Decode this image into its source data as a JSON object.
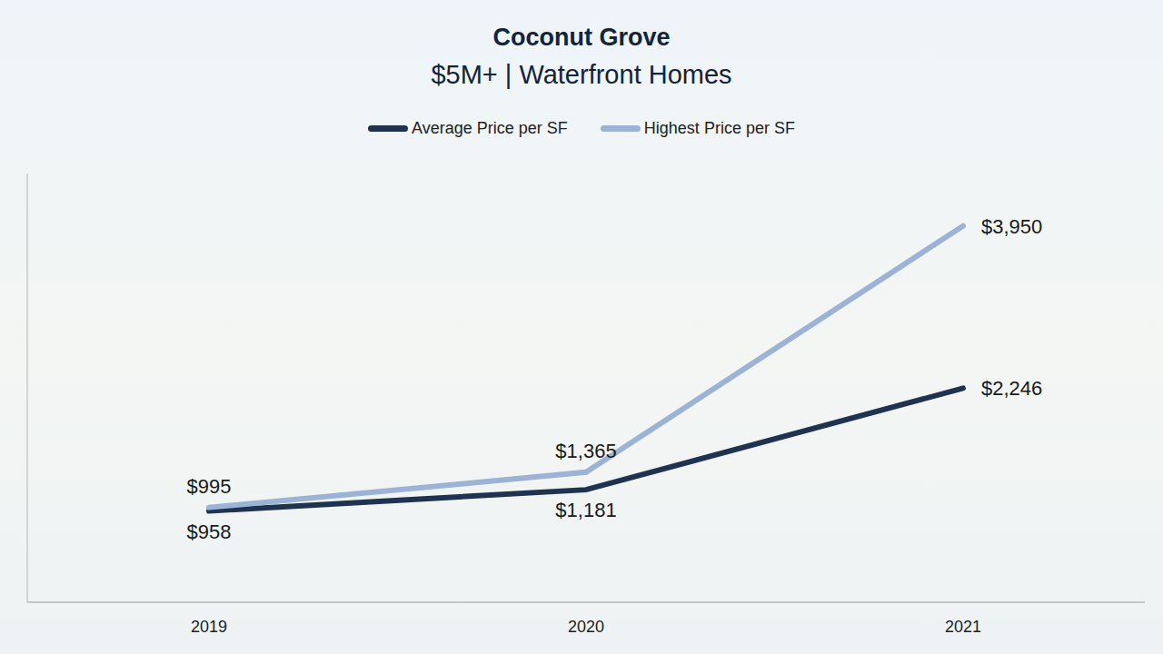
{
  "chart_data": {
    "type": "line",
    "title": "Coconut Grove",
    "subtitle": "$5M+ | Waterfront Homes",
    "categories": [
      "2019",
      "2020",
      "2021"
    ],
    "series": [
      {
        "name": "Average Price per SF",
        "color": "#1f3350",
        "values": [
          958,
          1181,
          2246
        ],
        "value_labels": [
          "$958",
          "$1,181",
          "$2,246"
        ]
      },
      {
        "name": "Highest Price per SF",
        "color": "#9db3d6",
        "values": [
          995,
          1365,
          3950
        ],
        "value_labels": [
          "$995",
          "$1,365",
          "$3,950"
        ]
      }
    ],
    "ylim": [
      0,
      4500
    ],
    "legend": "top",
    "data_labels": true,
    "tick_labels": "x"
  }
}
